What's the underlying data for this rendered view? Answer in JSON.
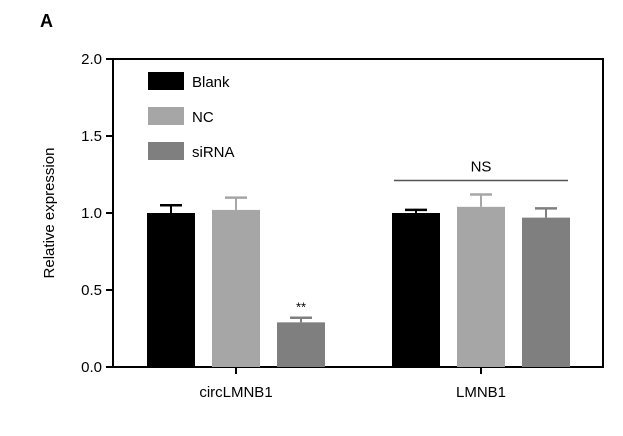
{
  "panel_label": "A",
  "chart_data": {
    "type": "bar",
    "categories": [
      "circLMNB1",
      "LMNB1"
    ],
    "series": [
      {
        "name": "Blank",
        "values": [
          1.0,
          1.0
        ],
        "errors": [
          0.05,
          0.02
        ],
        "color": "#000000"
      },
      {
        "name": "NC",
        "values": [
          1.02,
          1.04
        ],
        "errors": [
          0.08,
          0.08
        ],
        "color": "#a6a6a6"
      },
      {
        "name": "siRNA",
        "values": [
          0.29,
          0.97
        ],
        "errors": [
          0.03,
          0.06
        ],
        "color": "#7f7f7f"
      }
    ],
    "title": "",
    "xlabel": "",
    "ylabel": "Relative expression",
    "ylim": [
      0,
      2.0
    ],
    "yticks": [
      0.0,
      0.5,
      1.0,
      1.5,
      2.0
    ],
    "ytick_labels": [
      "0.0",
      "0.5",
      "1.0",
      "1.5",
      "2.0"
    ],
    "grid": false,
    "legend_position": "top-left",
    "annotations": [
      {
        "text": "**",
        "category": "circLMNB1",
        "series": "siRNA"
      },
      {
        "text": "NS",
        "category": "LMNB1",
        "type": "bracket"
      }
    ]
  }
}
